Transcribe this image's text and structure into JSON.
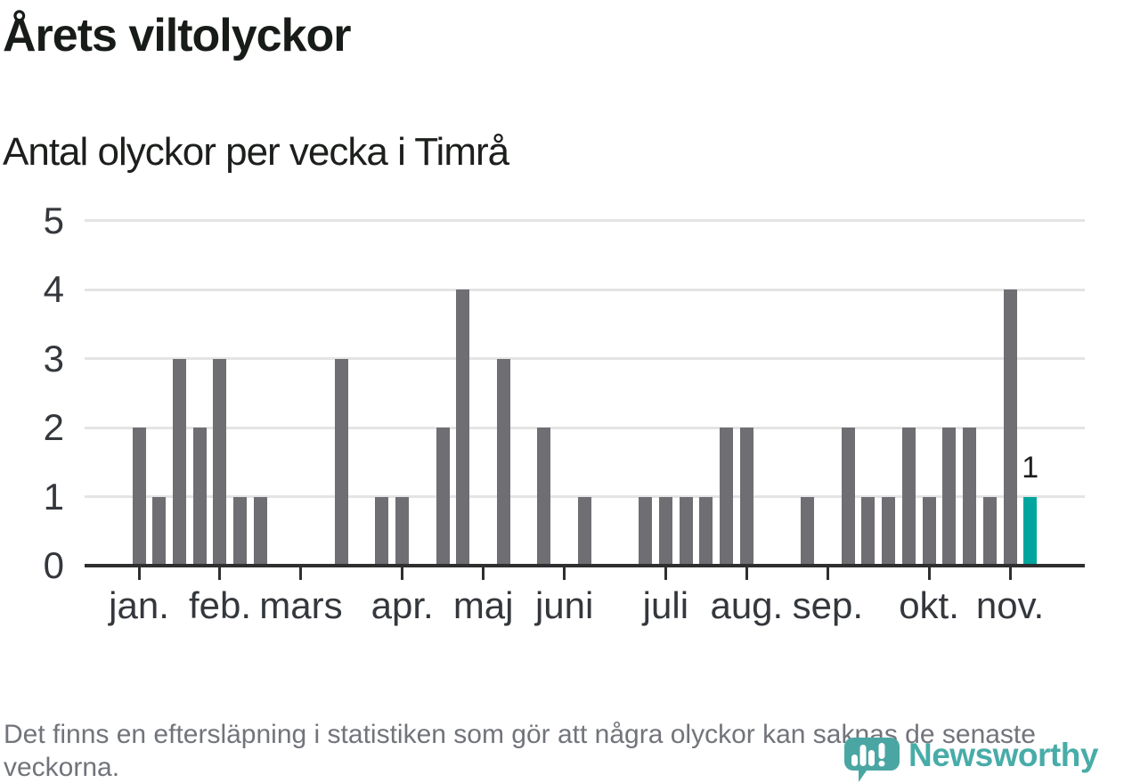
{
  "chart_data": {
    "type": "bar",
    "title": "Årets viltolyckor",
    "subtitle": "Antal olyckor per vecka i Timrå",
    "xlabel": "",
    "ylabel": "",
    "ylim": [
      0,
      5
    ],
    "grid": true,
    "y_ticks": [
      0,
      1,
      2,
      3,
      4,
      5
    ],
    "x_unit": "week",
    "weeks": 45,
    "values": [
      2,
      1,
      3,
      2,
      3,
      1,
      1,
      0,
      0,
      0,
      3,
      0,
      1,
      1,
      0,
      2,
      4,
      0,
      3,
      0,
      2,
      0,
      1,
      0,
      0,
      1,
      1,
      1,
      1,
      2,
      2,
      0,
      0,
      1,
      0,
      2,
      1,
      1,
      2,
      1,
      2,
      2,
      1,
      4,
      1
    ],
    "months": [
      {
        "label": "jan.",
        "week": 1
      },
      {
        "label": "feb.",
        "week": 5
      },
      {
        "label": "mars",
        "week": 9
      },
      {
        "label": "apr.",
        "week": 14
      },
      {
        "label": "maj",
        "week": 18
      },
      {
        "label": "juni",
        "week": 22
      },
      {
        "label": "juli",
        "week": 27
      },
      {
        "label": "aug.",
        "week": 31
      },
      {
        "label": "sep.",
        "week": 35
      },
      {
        "label": "okt.",
        "week": 40
      },
      {
        "label": "nov.",
        "week": 44
      }
    ],
    "highlight": {
      "week": 45,
      "value": 1,
      "label": "1"
    }
  },
  "footer": {
    "note": "Det finns en eftersläpning i statistiken som gör att några olyckor kan saknas de senaste veckorna."
  },
  "logo": {
    "text": "Newsworthy"
  },
  "colors": {
    "bar": "#6e6e73",
    "highlight_bar": "#00a69e",
    "gridline": "#e4e4e4",
    "axis": "#2f2f2f",
    "logo_teal": "#3aa6a1"
  }
}
